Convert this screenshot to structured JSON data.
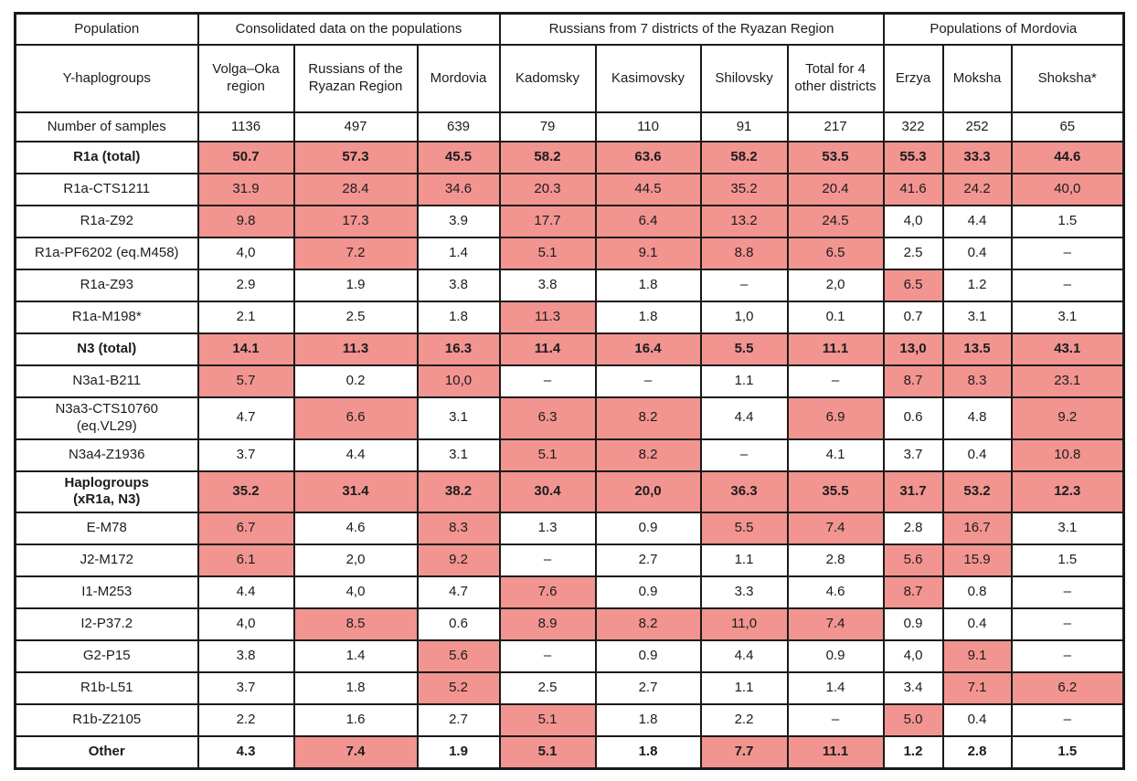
{
  "table": {
    "highlight_color": "#F2948F",
    "border_color": "#1a1a1a",
    "group_headers": [
      {
        "label": "Population",
        "span": 1
      },
      {
        "label": "Consolidated data on the populations",
        "span": 3
      },
      {
        "label": "Russians from 7 districts of the Ryazan Region",
        "span": 4
      },
      {
        "label": "Populations of Mordovia",
        "span": 3
      }
    ],
    "column_headers": [
      "Y-haplogroups",
      "Volga–Oka region",
      "Russians of the Ryazan Region",
      "Mordovia",
      "Kadomsky",
      "Kasimovsky",
      "Shilovsky",
      "Total for 4 other districts",
      "Erzya",
      "Moksha",
      "Shoksha*"
    ],
    "samples_row": {
      "label": "Number of samples",
      "values": [
        "1136",
        "497",
        "639",
        "79",
        "110",
        "91",
        "217",
        "322",
        "252",
        "65"
      ]
    },
    "rows": [
      {
        "label": "R1a (total)",
        "bold": true,
        "values": [
          "50.7",
          "57.3",
          "45.5",
          "58.2",
          "63.6",
          "58.2",
          "53.5",
          "55.3",
          "33.3",
          "44.6"
        ],
        "highlight": [
          1,
          1,
          1,
          1,
          1,
          1,
          1,
          1,
          1,
          1
        ]
      },
      {
        "label": "R1a-CTS1211",
        "bold": false,
        "values": [
          "31.9",
          "28.4",
          "34.6",
          "20.3",
          "44.5",
          "35.2",
          "20.4",
          "41.6",
          "24.2",
          "40,0"
        ],
        "highlight": [
          1,
          1,
          1,
          1,
          1,
          1,
          1,
          1,
          1,
          1
        ]
      },
      {
        "label": "R1a-Z92",
        "bold": false,
        "values": [
          "9.8",
          "17.3",
          "3.9",
          "17.7",
          "6.4",
          "13.2",
          "24.5",
          "4,0",
          "4.4",
          "1.5"
        ],
        "highlight": [
          1,
          1,
          0,
          1,
          1,
          1,
          1,
          0,
          0,
          0
        ]
      },
      {
        "label": "R1a-PF6202 (eq.M458)",
        "bold": false,
        "values": [
          "4,0",
          "7.2",
          "1.4",
          "5.1",
          "9.1",
          "8.8",
          "6.5",
          "2.5",
          "0.4",
          "–"
        ],
        "highlight": [
          0,
          1,
          0,
          1,
          1,
          1,
          1,
          0,
          0,
          0
        ]
      },
      {
        "label": "R1a-Z93",
        "bold": false,
        "values": [
          "2.9",
          "1.9",
          "3.8",
          "3.8",
          "1.8",
          "–",
          "2,0",
          "6.5",
          "1.2",
          "–"
        ],
        "highlight": [
          0,
          0,
          0,
          0,
          0,
          0,
          0,
          1,
          0,
          0
        ]
      },
      {
        "label": "R1a-M198*",
        "bold": false,
        "values": [
          "2.1",
          "2.5",
          "1.8",
          "11.3",
          "1.8",
          "1,0",
          "0.1",
          "0.7",
          "3.1",
          "3.1"
        ],
        "highlight": [
          0,
          0,
          0,
          1,
          0,
          0,
          0,
          0,
          0,
          0
        ]
      },
      {
        "label": "N3 (total)",
        "bold": true,
        "values": [
          "14.1",
          "11.3",
          "16.3",
          "11.4",
          "16.4",
          "5.5",
          "11.1",
          "13,0",
          "13.5",
          "43.1"
        ],
        "highlight": [
          1,
          1,
          1,
          1,
          1,
          1,
          1,
          1,
          1,
          1
        ]
      },
      {
        "label": "N3a1-B211",
        "bold": false,
        "values": [
          "5.7",
          "0.2",
          "10,0",
          "–",
          "–",
          "1.1",
          "–",
          "8.7",
          "8.3",
          "23.1"
        ],
        "highlight": [
          1,
          0,
          1,
          0,
          0,
          0,
          0,
          1,
          1,
          1
        ]
      },
      {
        "label": "N3a3-CTS10760\n(eq.VL29)",
        "bold": false,
        "tall": true,
        "values": [
          "4.7",
          "6.6",
          "3.1",
          "6.3",
          "8.2",
          "4.4",
          "6.9",
          "0.6",
          "4.8",
          "9.2"
        ],
        "highlight": [
          0,
          1,
          0,
          1,
          1,
          0,
          1,
          0,
          0,
          1
        ]
      },
      {
        "label": "N3a4-Z1936",
        "bold": false,
        "values": [
          "3.7",
          "4.4",
          "3.1",
          "5.1",
          "8.2",
          "–",
          "4.1",
          "3.7",
          "0.4",
          "10.8"
        ],
        "highlight": [
          0,
          0,
          0,
          1,
          1,
          0,
          0,
          0,
          0,
          1
        ]
      },
      {
        "label": "Haplogroups\n(xR1a, N3)",
        "bold": true,
        "tall": true,
        "values": [
          "35.2",
          "31.4",
          "38.2",
          "30.4",
          "20,0",
          "36.3",
          "35.5",
          "31.7",
          "53.2",
          "12.3"
        ],
        "highlight": [
          1,
          1,
          1,
          1,
          1,
          1,
          1,
          1,
          1,
          1
        ]
      },
      {
        "label": "E-M78",
        "bold": false,
        "values": [
          "6.7",
          "4.6",
          "8.3",
          "1.3",
          "0.9",
          "5.5",
          "7.4",
          "2.8",
          "16.7",
          "3.1"
        ],
        "highlight": [
          1,
          0,
          1,
          0,
          0,
          1,
          1,
          0,
          1,
          0
        ]
      },
      {
        "label": "J2-M172",
        "bold": false,
        "values": [
          "6.1",
          "2,0",
          "9.2",
          "–",
          "2.7",
          "1.1",
          "2.8",
          "5.6",
          "15.9",
          "1.5"
        ],
        "highlight": [
          1,
          0,
          1,
          0,
          0,
          0,
          0,
          1,
          1,
          0
        ]
      },
      {
        "label": "I1-M253",
        "bold": false,
        "values": [
          "4.4",
          "4,0",
          "4.7",
          "7.6",
          "0.9",
          "3.3",
          "4.6",
          "8.7",
          "0.8",
          "–"
        ],
        "highlight": [
          0,
          0,
          0,
          1,
          0,
          0,
          0,
          1,
          0,
          0
        ]
      },
      {
        "label": "I2-P37.2",
        "bold": false,
        "values": [
          "4,0",
          "8.5",
          "0.6",
          "8.9",
          "8.2",
          "11,0",
          "7.4",
          "0.9",
          "0.4",
          "–"
        ],
        "highlight": [
          0,
          1,
          0,
          1,
          1,
          1,
          1,
          0,
          0,
          0
        ]
      },
      {
        "label": "G2-P15",
        "bold": false,
        "values": [
          "3.8",
          "1.4",
          "5.6",
          "–",
          "0.9",
          "4.4",
          "0.9",
          "4,0",
          "9.1",
          "–"
        ],
        "highlight": [
          0,
          0,
          1,
          0,
          0,
          0,
          0,
          0,
          1,
          0
        ]
      },
      {
        "label": "R1b-L51",
        "bold": false,
        "values": [
          "3.7",
          "1.8",
          "5.2",
          "2.5",
          "2.7",
          "1.1",
          "1.4",
          "3.4",
          "7.1",
          "6.2"
        ],
        "highlight": [
          0,
          0,
          1,
          0,
          0,
          0,
          0,
          0,
          1,
          1
        ]
      },
      {
        "label": "R1b-Z2105",
        "bold": false,
        "values": [
          "2.2",
          "1.6",
          "2.7",
          "5.1",
          "1.8",
          "2.2",
          "–",
          "5.0",
          "0.4",
          "–"
        ],
        "highlight": [
          0,
          0,
          0,
          1,
          0,
          0,
          0,
          1,
          0,
          0
        ]
      },
      {
        "label": "Other",
        "bold": true,
        "values": [
          "4.3",
          "7.4",
          "1.9",
          "5.1",
          "1.8",
          "7.7",
          "11.1",
          "1.2",
          "2.8",
          "1.5"
        ],
        "highlight": [
          0,
          1,
          0,
          1,
          0,
          1,
          1,
          0,
          0,
          0
        ]
      }
    ]
  }
}
